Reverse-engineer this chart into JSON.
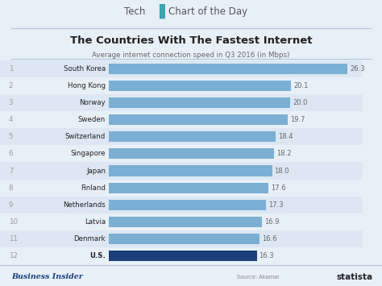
{
  "title": "The Countries With The Fastest Internet",
  "subtitle": "Average internet connection speed in Q3 2016 (in Mbps)",
  "countries": [
    "South Korea",
    "Hong Kong",
    "Norway",
    "Sweden",
    "Switzerland",
    "Singapore",
    "Japan",
    "Finland",
    "Netherlands",
    "Latvia",
    "Denmark",
    "U.S."
  ],
  "ranks": [
    1,
    2,
    3,
    4,
    5,
    6,
    7,
    8,
    9,
    10,
    11,
    12
  ],
  "values": [
    26.3,
    20.1,
    20.0,
    19.7,
    18.4,
    18.2,
    18.0,
    17.6,
    17.3,
    16.9,
    16.6,
    16.3
  ],
  "bar_colors": [
    "#7bafd4",
    "#7bafd4",
    "#7bafd4",
    "#7bafd4",
    "#7bafd4",
    "#7bafd4",
    "#7bafd4",
    "#7bafd4",
    "#7bafd4",
    "#7bafd4",
    "#7bafd4",
    "#1b3f7a"
  ],
  "stripe_odd": "#dce7f3",
  "stripe_even": "#e8f0f7",
  "bg_color": "#e8f0f7",
  "footer_bg": "#d5e3ef",
  "header_color": "#3da5b0",
  "footer_left_color": "#1b3f7a",
  "text_color_rank": "#999999",
  "text_color_country": "#444444",
  "text_color_value": "#666666",
  "xlim": [
    0,
    28
  ],
  "bar_height": 0.62
}
